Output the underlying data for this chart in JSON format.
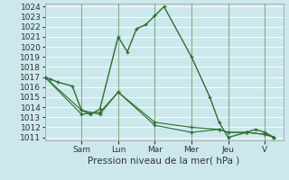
{
  "xlabel": "Pression niveau de la mer( hPa )",
  "bg_color": "#cce8ec",
  "grid_color": "#ffffff",
  "line_color": "#2d6e2d",
  "separator_color": "#7aaa7a",
  "ylim_lo": 1011,
  "ylim_hi": 1024,
  "yticks": [
    1011,
    1012,
    1013,
    1014,
    1015,
    1016,
    1017,
    1018,
    1019,
    1020,
    1021,
    1022,
    1023,
    1024
  ],
  "day_positions": [
    2,
    4,
    6,
    8,
    10,
    12
  ],
  "day_labels": [
    "Sam",
    "Lun",
    "Mar",
    "Mer",
    "Jeu",
    "V"
  ],
  "xlim": [
    0,
    13
  ],
  "series1_x": [
    0,
    0.3,
    0.7,
    1.5,
    2.0,
    2.5,
    3.0,
    4.0,
    4.5,
    5.0,
    5.5,
    6.0,
    6.5,
    8.0,
    9.0,
    9.5,
    10.0,
    11.0,
    11.5,
    12.0,
    12.5
  ],
  "series1_y": [
    1017.0,
    1016.8,
    1016.5,
    1016.1,
    1013.7,
    1013.3,
    1013.8,
    1021.0,
    1019.5,
    1021.8,
    1022.2,
    1023.1,
    1024.0,
    1019.0,
    1015.0,
    1012.5,
    1011.0,
    1011.5,
    1011.8,
    1011.5,
    1011.0
  ],
  "series2_x": [
    0,
    2.0,
    3.0,
    4.0,
    6.0,
    8.0,
    9.5,
    10.0,
    11.0,
    12.0,
    12.5
  ],
  "series2_y": [
    1017.0,
    1013.7,
    1013.3,
    1015.5,
    1012.2,
    1011.5,
    1011.8,
    1011.5,
    1011.5,
    1011.3,
    1011.0
  ],
  "series3_x": [
    0,
    2.0,
    3.0,
    4.0,
    6.0,
    8.0,
    9.5,
    10.0,
    11.0,
    12.0,
    12.5
  ],
  "series3_y": [
    1017.0,
    1013.3,
    1013.5,
    1015.5,
    1012.5,
    1012.0,
    1011.8,
    1011.5,
    1011.5,
    1011.3,
    1011.0
  ],
  "xlabel_fontsize": 7.5,
  "tick_fontsize": 6.5,
  "xlabel_color": "#333333",
  "tick_color": "#333333"
}
